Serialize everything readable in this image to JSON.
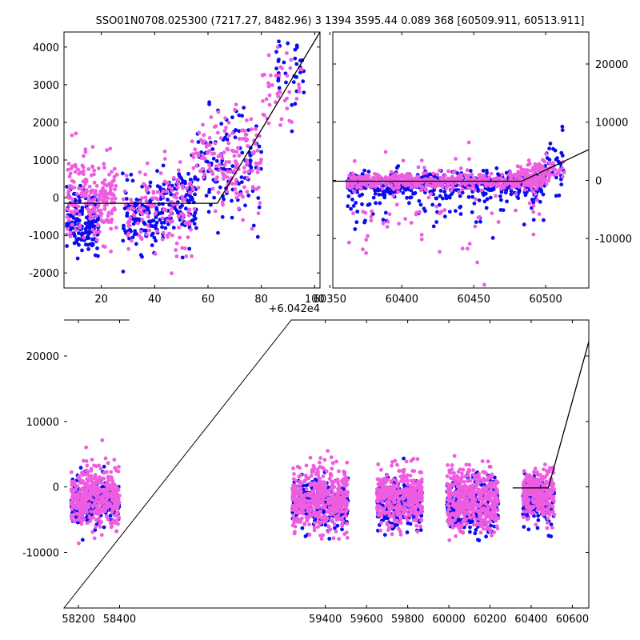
{
  "figure": {
    "title": "SSO01N0708.025300 (7217.27, 8482.96)   3 1394 3595.44 0.089 368 [60509.911, 60513.911]"
  },
  "colors": {
    "series_a": "#0b0bf0",
    "series_b": "#ee5ce0",
    "model": "#000000",
    "axes": "#000000",
    "background": "#ffffff"
  },
  "chart_data": [
    {
      "id": "zoom-recent",
      "type": "scatter",
      "xlim": [
        60426,
        60522
      ],
      "ylim": [
        -2400,
        4400
      ],
      "xticks": [
        20,
        40,
        60,
        80,
        100
      ],
      "x_offset_label": "+6.042e4",
      "yticks": [
        -2000,
        -1000,
        0,
        1000,
        2000,
        3000,
        4000
      ],
      "y_axis_side": "left",
      "model_line": {
        "x": [
          60426,
          60483.5,
          60522
        ],
        "y": [
          -150,
          -150,
          4400
        ]
      },
      "series": [
        {
          "color_key": "series_a",
          "clusters": [
            {
              "x": [
                60427,
                60439
              ],
              "y_center": -600,
              "y_spread": 700,
              "n": 160
            },
            {
              "x": [
                60448,
                60462
              ],
              "y_center": -500,
              "y_spread": 700,
              "n": 110
            },
            {
              "x": [
                60462,
                60476
              ],
              "y_center": -200,
              "y_spread": 800,
              "n": 120
            },
            {
              "x": [
                60476,
                60500
              ],
              "y_center": 800,
              "y_spread": 1200,
              "n": 120
            },
            {
              "x": [
                60505,
                60516
              ],
              "y_center": 3300,
              "y_spread": 900,
              "n": 35
            }
          ]
        },
        {
          "color_key": "series_b",
          "clusters": [
            {
              "x": [
                60427,
                60446
              ],
              "y_center": 0,
              "y_spread": 900,
              "n": 210
            },
            {
              "x": [
                60448,
                60474
              ],
              "y_center": -300,
              "y_spread": 1000,
              "n": 140
            },
            {
              "x": [
                60474,
                60500
              ],
              "y_center": 900,
              "y_spread": 1100,
              "n": 160
            },
            {
              "x": [
                60500,
                60516
              ],
              "y_center": 2800,
              "y_spread": 900,
              "n": 45
            }
          ]
        }
      ]
    },
    {
      "id": "zoom-season",
      "type": "scatter",
      "xlim": [
        60352,
        60530
      ],
      "ylim": [
        -18500,
        25500
      ],
      "xticks": [
        60350,
        60400,
        60450,
        60500
      ],
      "yticks": [
        -10000,
        0,
        10000,
        20000
      ],
      "y_axis_side": "right",
      "model_line": {
        "x": [
          60352,
          60483.5,
          60530
        ],
        "y": [
          -150,
          -150,
          5300
        ]
      },
      "series": [
        {
          "color_key": "series_a",
          "clusters": [
            {
              "x": [
                60362,
                60500
              ],
              "y_center": -800,
              "y_spread": 1800,
              "n": 420
            },
            {
              "x": [
                60362,
                60500
              ],
              "y_center": -3500,
              "y_spread": 5000,
              "n": 90
            },
            {
              "x": [
                60500,
                60513
              ],
              "y_center": 3000,
              "y_spread": 4000,
              "n": 30
            }
          ]
        },
        {
          "color_key": "series_b",
          "clusters": [
            {
              "x": [
                60362,
                60500
              ],
              "y_center": -200,
              "y_spread": 1200,
              "n": 520
            },
            {
              "x": [
                60362,
                60500
              ],
              "y_center": -4000,
              "y_spread": 7000,
              "n": 80
            },
            {
              "x": [
                60480,
                60513
              ],
              "y_center": 1500,
              "y_spread": 2000,
              "n": 90
            }
          ]
        }
      ]
    },
    {
      "id": "full-lightcurve",
      "type": "scatter",
      "xlim": [
        58130,
        60680
      ],
      "ylim": [
        -18500,
        25500
      ],
      "xticks": [
        58200,
        58400,
        59400,
        59600,
        59800,
        60000,
        60200,
        60400,
        60600
      ],
      "yticks": [
        -10000,
        0,
        10000,
        20000
      ],
      "y_axis_side": "left",
      "model_line": {
        "x": [
          60310,
          60483.5,
          60680
        ],
        "y": [
          -150,
          -150,
          22200
        ]
      },
      "series": [
        {
          "color_key": "series_a",
          "clusters": [
            {
              "x": [
                58165,
                58400
              ],
              "y_center": -2000,
              "y_spread": 3000,
              "n": 200
            },
            {
              "x": [
                59240,
                59510
              ],
              "y_center": -2500,
              "y_spread": 3000,
              "n": 260
            },
            {
              "x": [
                59650,
                59870
              ],
              "y_center": -2500,
              "y_spread": 3200,
              "n": 230
            },
            {
              "x": [
                59990,
                60240
              ],
              "y_center": -3000,
              "y_spread": 3500,
              "n": 260
            },
            {
              "x": [
                60360,
                60513
              ],
              "y_center": -2000,
              "y_spread": 3000,
              "n": 150
            }
          ]
        },
        {
          "color_key": "series_b",
          "clusters": [
            {
              "x": [
                58165,
                58400
              ],
              "y_center": -1500,
              "y_spread": 3800,
              "n": 420
            },
            {
              "x": [
                59240,
                59510
              ],
              "y_center": -2000,
              "y_spread": 4200,
              "n": 480
            },
            {
              "x": [
                59650,
                59870
              ],
              "y_center": -1500,
              "y_spread": 3500,
              "n": 380
            },
            {
              "x": [
                59990,
                60240
              ],
              "y_center": -2000,
              "y_spread": 4000,
              "n": 450
            },
            {
              "x": [
                60360,
                60513
              ],
              "y_center": -1000,
              "y_spread": 3000,
              "n": 300
            }
          ]
        }
      ]
    }
  ]
}
